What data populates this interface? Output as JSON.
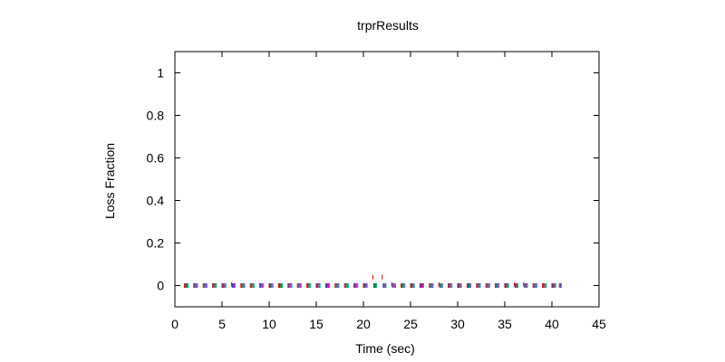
{
  "chart_data": {
    "type": "scatter",
    "title": "trprResults",
    "xlabel": "Time (sec)",
    "ylabel": "Loss Fraction",
    "xlim": [
      0,
      45
    ],
    "ylim": [
      -0.1,
      1.1
    ],
    "xticks": [
      0,
      5,
      10,
      15,
      20,
      25,
      30,
      35,
      40,
      45
    ],
    "yticks": [
      0,
      0.2,
      0.4,
      0.6,
      0.8,
      1
    ],
    "ytick_labels": [
      "0",
      "0.2",
      "0.4",
      "0.6",
      "0.8",
      "1"
    ],
    "grid": false,
    "legend": "none",
    "series": [
      {
        "color": "#e00000",
        "x": [
          1,
          2,
          3,
          4,
          5,
          6,
          7,
          8,
          9,
          10,
          11,
          12,
          13,
          14,
          15,
          16,
          17,
          18,
          19,
          20,
          21,
          22,
          23,
          24,
          25,
          26,
          27,
          28,
          29,
          30,
          31,
          32,
          33,
          34,
          35,
          36,
          37,
          38,
          39,
          40,
          40.8
        ],
        "y": [
          0,
          0,
          0,
          0,
          0,
          0.005,
          0,
          0,
          0,
          0,
          0,
          0,
          0,
          0,
          0,
          0,
          0,
          0,
          0,
          0,
          0.04,
          0.04,
          0.005,
          0,
          0,
          0,
          0,
          0.005,
          0,
          0,
          0,
          0,
          0,
          0,
          0,
          0.005,
          0.005,
          0,
          0,
          0,
          0
        ]
      },
      {
        "color": "#00a000",
        "x": [
          1.2,
          2.2,
          3.2,
          4.2,
          5.2,
          6.2,
          7.2,
          8.2,
          9.2,
          10.2,
          11.2,
          12.2,
          13.2,
          14.2,
          15.2,
          16.2,
          17.2,
          18.2,
          19.2,
          20.2,
          21.2,
          22.2,
          23.2,
          24.2,
          25.2,
          26.2,
          27.2,
          28.2,
          29.2,
          30.2,
          31.2,
          32.2,
          33.2,
          34.2,
          35.2,
          36.2,
          37.2,
          38.2,
          39.2,
          40.2
        ],
        "y": [
          0,
          0,
          0,
          0,
          0,
          0,
          0,
          0,
          0,
          0,
          0,
          0,
          0,
          0,
          0,
          0,
          0,
          0,
          0,
          0,
          0,
          0,
          0,
          0,
          0,
          0,
          0,
          0,
          0,
          0,
          0,
          0,
          0,
          0,
          0,
          0,
          0,
          0,
          0,
          0
        ]
      },
      {
        "color": "#3030c0",
        "x": [
          1.1,
          2.1,
          3.1,
          4.1,
          5.1,
          6.1,
          7.1,
          8.1,
          9.1,
          10.1,
          11.1,
          12.1,
          13.1,
          14.1,
          15.1,
          16.1,
          17.1,
          18.1,
          19.1,
          20.1,
          21.1,
          22.1,
          23.1,
          24.1,
          25.1,
          26.1,
          27.1,
          28.1,
          29.1,
          30.1,
          31.1,
          32.1,
          33.1,
          34.1,
          35.1,
          36.1,
          37.1,
          38.1,
          39.1,
          40.1,
          40.9
        ],
        "y": [
          0,
          0,
          0,
          0,
          0,
          0,
          0,
          0,
          0,
          0,
          0,
          0,
          0,
          0,
          0,
          0,
          0,
          0,
          0,
          0,
          0,
          0,
          0,
          0,
          0,
          0,
          0,
          0,
          0,
          0,
          0,
          0,
          0,
          0,
          0,
          0,
          0,
          0,
          0,
          0,
          0
        ]
      },
      {
        "color": "#e000e0",
        "x": [
          1.3,
          2.3,
          3.3,
          4.3,
          5.3,
          6.3,
          7.3,
          8.3,
          9.3,
          10.3,
          11.3,
          12.3,
          13.3,
          14.3,
          15.3,
          16.3,
          17.3,
          18.3,
          19.3,
          20.3,
          21.3,
          22.3,
          23.3,
          24.3,
          25.3,
          26.3,
          27.3,
          28.3,
          29.3,
          30.3,
          31.3,
          32.3,
          33.3,
          34.3,
          35.3,
          36.3,
          37.3,
          38.3,
          39.3,
          40.3
        ],
        "y": [
          0,
          0,
          0,
          0,
          0,
          0,
          0,
          0,
          0,
          0,
          0,
          0,
          0,
          0,
          0,
          0,
          0,
          0,
          0,
          0,
          0,
          0,
          0,
          0,
          0,
          0,
          0,
          0,
          0,
          0,
          0,
          0,
          0,
          0,
          0,
          0,
          0,
          0,
          0,
          0
        ]
      },
      {
        "color": "#00a0a0",
        "x": [
          1.4,
          2.4,
          3.4,
          4.4,
          5.4,
          6.4,
          7.4,
          8.4,
          9.4,
          10.4,
          11.4,
          12.4,
          13.4,
          14.4,
          15.4,
          16.4,
          17.4,
          18.4,
          19.4,
          20.4,
          21.4,
          22.4,
          23.4,
          24.4,
          25.4,
          26.4,
          27.4,
          28.4,
          29.4,
          30.4,
          31.4,
          32.4,
          33.4,
          34.4,
          35.4,
          36.4,
          37.4,
          38.4,
          39.4,
          40.4,
          41
        ],
        "y": [
          0,
          0,
          0,
          0,
          0,
          0,
          0,
          0,
          0,
          0,
          0,
          0,
          0,
          0,
          0,
          0,
          0,
          0,
          0,
          0,
          0,
          0,
          0,
          0,
          0,
          0,
          0,
          0,
          0,
          0,
          0,
          0,
          0,
          0,
          0,
          0,
          0,
          0,
          0,
          0,
          0
        ]
      }
    ]
  }
}
